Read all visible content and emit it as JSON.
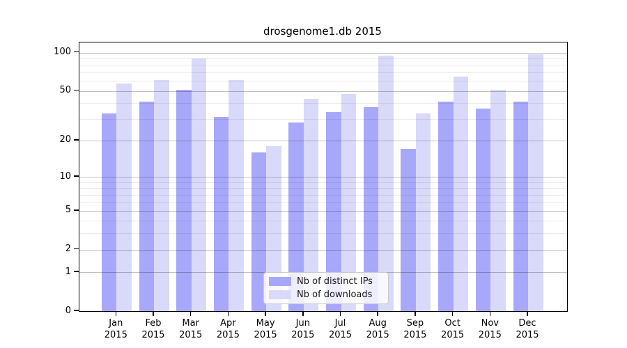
{
  "title": "drosgenome1.db 2015",
  "colors": {
    "distinct_ips": "#a8a8fa",
    "downloads": "#d9d9fa",
    "grid_major": "#c7c7c7",
    "grid_minor": "#ededed",
    "axis": "#000000"
  },
  "legend": {
    "entries": [
      {
        "label": "Nb of distinct IPs",
        "color": "#a8a8fa"
      },
      {
        "label": "Nb of downloads",
        "color": "#d9d9fa"
      }
    ]
  },
  "chart_data": {
    "type": "bar",
    "title": "drosgenome1.db 2015",
    "categories": [
      "Jan",
      "Feb",
      "Mar",
      "Apr",
      "May",
      "Jun",
      "Jul",
      "Aug",
      "Sep",
      "Oct",
      "Nov",
      "Dec"
    ],
    "year": "2015",
    "series": [
      {
        "name": "Nb of distinct IPs",
        "color": "#a8a8fa",
        "values": [
          33,
          41,
          51,
          31,
          16,
          28,
          34,
          37,
          17,
          41,
          36,
          41
        ]
      },
      {
        "name": "Nb of downloads",
        "color": "#d9d9fa",
        "values": [
          57,
          61,
          90,
          61,
          18,
          43,
          47,
          95,
          33,
          65,
          51,
          97
        ]
      }
    ],
    "xlabel": "",
    "ylabel": "",
    "yscale": "log1p",
    "ylim": [
      0,
      120
    ],
    "yticks": [
      0,
      1,
      2,
      5,
      10,
      20,
      50,
      100
    ],
    "minor_yticks": [
      3,
      4,
      6,
      7,
      8,
      9,
      30,
      40,
      60,
      70,
      80,
      90
    ],
    "grid": true,
    "legend_position": "lower center"
  }
}
